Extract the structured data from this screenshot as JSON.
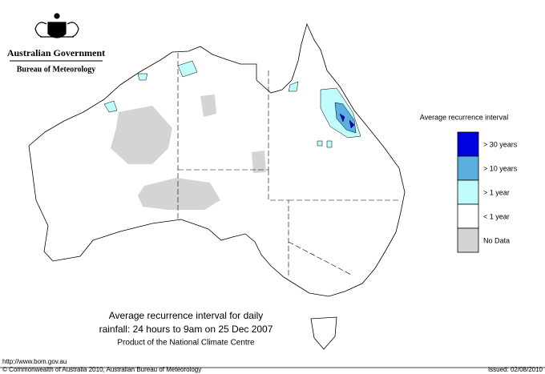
{
  "header": {
    "title": "Australian Government",
    "subtitle": "Bureau of Meteorology"
  },
  "legend": {
    "title": "Average recurrence interval",
    "items": [
      {
        "label": "> 30 years",
        "color": "#0000e0"
      },
      {
        "label": "> 10 years",
        "color": "#5aaee0"
      },
      {
        "label": "> 1 year",
        "color": "#c0fcfc"
      },
      {
        "label": "< 1 year",
        "color": "#ffffff"
      },
      {
        "label": "No Data",
        "color": "#d4d4d4"
      }
    ]
  },
  "caption": {
    "line1": "Average recurrence interval for daily",
    "line2": "rainfall: 24 hours to 9am on 25 Dec 2007",
    "line3": "Product of the National Climate Centre"
  },
  "footer": {
    "url": "http://www.bom.gov.au",
    "copyright": "© Commonwealth of Australia 2010, Australian Bureau of Meteorology",
    "issued": "Issued: 02/08/2010"
  }
}
